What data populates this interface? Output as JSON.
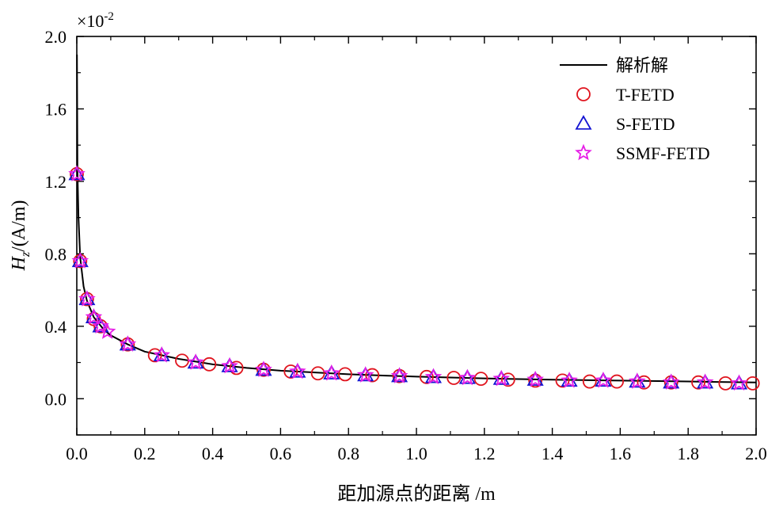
{
  "chart_data": {
    "type": "scatter",
    "title": "",
    "xlabel": "距加源点的距离 /m",
    "ylabel": "H_z/(A/m)",
    "ylabel_parts": {
      "main": "H",
      "sub": "z",
      "rest": "/(A/m)"
    },
    "y_multiplier": "×10",
    "y_multiplier_exp": "-2",
    "xlim": [
      0.0,
      2.0
    ],
    "ylim": [
      -0.2,
      2.0
    ],
    "x_ticks": [
      0.0,
      0.2,
      0.4,
      0.6,
      0.8,
      1.0,
      1.2,
      1.4,
      1.6,
      1.8,
      2.0
    ],
    "x_tick_labels": [
      "0.0",
      "0.2",
      "0.4",
      "0.6",
      "0.8",
      "1.0",
      "1.2",
      "1.4",
      "1.6",
      "1.8",
      "2.0"
    ],
    "y_ticks": [
      0.0,
      0.4,
      0.8,
      1.2,
      1.6,
      2.0
    ],
    "y_tick_labels": [
      "0.0",
      "0.4",
      "0.8",
      "1.2",
      "1.6",
      "2.0"
    ],
    "grid": false,
    "legend_position": "top-right",
    "series": [
      {
        "name": "解析解",
        "kind": "line",
        "color": "#000000",
        "x": [
          0.0005,
          0.002,
          0.005,
          0.01,
          0.02,
          0.03,
          0.05,
          0.08,
          0.1,
          0.15,
          0.2,
          0.25,
          0.3,
          0.4,
          0.5,
          0.6,
          0.7,
          0.8,
          0.9,
          1.0,
          1.2,
          1.4,
          1.6,
          1.8,
          2.0
        ],
        "y": [
          1.9,
          1.25,
          1.0,
          0.78,
          0.62,
          0.54,
          0.45,
          0.38,
          0.35,
          0.3,
          0.26,
          0.24,
          0.22,
          0.19,
          0.17,
          0.155,
          0.145,
          0.135,
          0.128,
          0.122,
          0.112,
          0.105,
          0.1,
          0.095,
          0.09
        ]
      },
      {
        "name": "T-FETD",
        "kind": "circle",
        "color": "#e0141e",
        "x": [
          0.0,
          0.01,
          0.03,
          0.05,
          0.07,
          0.15,
          0.23,
          0.31,
          0.39,
          0.47,
          0.55,
          0.63,
          0.71,
          0.79,
          0.87,
          0.95,
          1.03,
          1.11,
          1.19,
          1.27,
          1.35,
          1.43,
          1.51,
          1.59,
          1.67,
          1.75,
          1.83,
          1.91,
          1.99
        ],
        "y": [
          1.24,
          0.76,
          0.55,
          0.44,
          0.4,
          0.3,
          0.24,
          0.21,
          0.19,
          0.17,
          0.16,
          0.15,
          0.14,
          0.135,
          0.13,
          0.125,
          0.12,
          0.115,
          0.11,
          0.105,
          0.1,
          0.1,
          0.095,
          0.095,
          0.09,
          0.09,
          0.09,
          0.085,
          0.085
        ]
      },
      {
        "name": "S-FETD",
        "kind": "triangle",
        "color": "#1414d2",
        "x": [
          0.0,
          0.01,
          0.03,
          0.05,
          0.07,
          0.15,
          0.25,
          0.35,
          0.45,
          0.55,
          0.65,
          0.75,
          0.85,
          0.95,
          1.05,
          1.15,
          1.25,
          1.35,
          1.45,
          1.55,
          1.65,
          1.75,
          1.85,
          1.95
        ],
        "y": [
          1.24,
          0.76,
          0.55,
          0.45,
          0.4,
          0.3,
          0.24,
          0.2,
          0.18,
          0.16,
          0.15,
          0.14,
          0.13,
          0.125,
          0.12,
          0.115,
          0.11,
          0.105,
          0.1,
          0.1,
          0.095,
          0.09,
          0.09,
          0.085
        ]
      },
      {
        "name": "SSMF-FETD",
        "kind": "star",
        "color": "#e61ee6",
        "x": [
          0.0,
          0.01,
          0.03,
          0.05,
          0.07,
          0.09,
          0.15,
          0.25,
          0.35,
          0.45,
          0.55,
          0.65,
          0.75,
          0.85,
          0.95,
          1.05,
          1.15,
          1.25,
          1.35,
          1.45,
          1.55,
          1.65,
          1.75,
          1.85,
          1.95
        ],
        "y": [
          1.24,
          0.76,
          0.55,
          0.45,
          0.4,
          0.37,
          0.3,
          0.24,
          0.2,
          0.18,
          0.16,
          0.15,
          0.14,
          0.13,
          0.125,
          0.12,
          0.115,
          0.11,
          0.105,
          0.1,
          0.1,
          0.095,
          0.09,
          0.09,
          0.085
        ]
      }
    ]
  }
}
